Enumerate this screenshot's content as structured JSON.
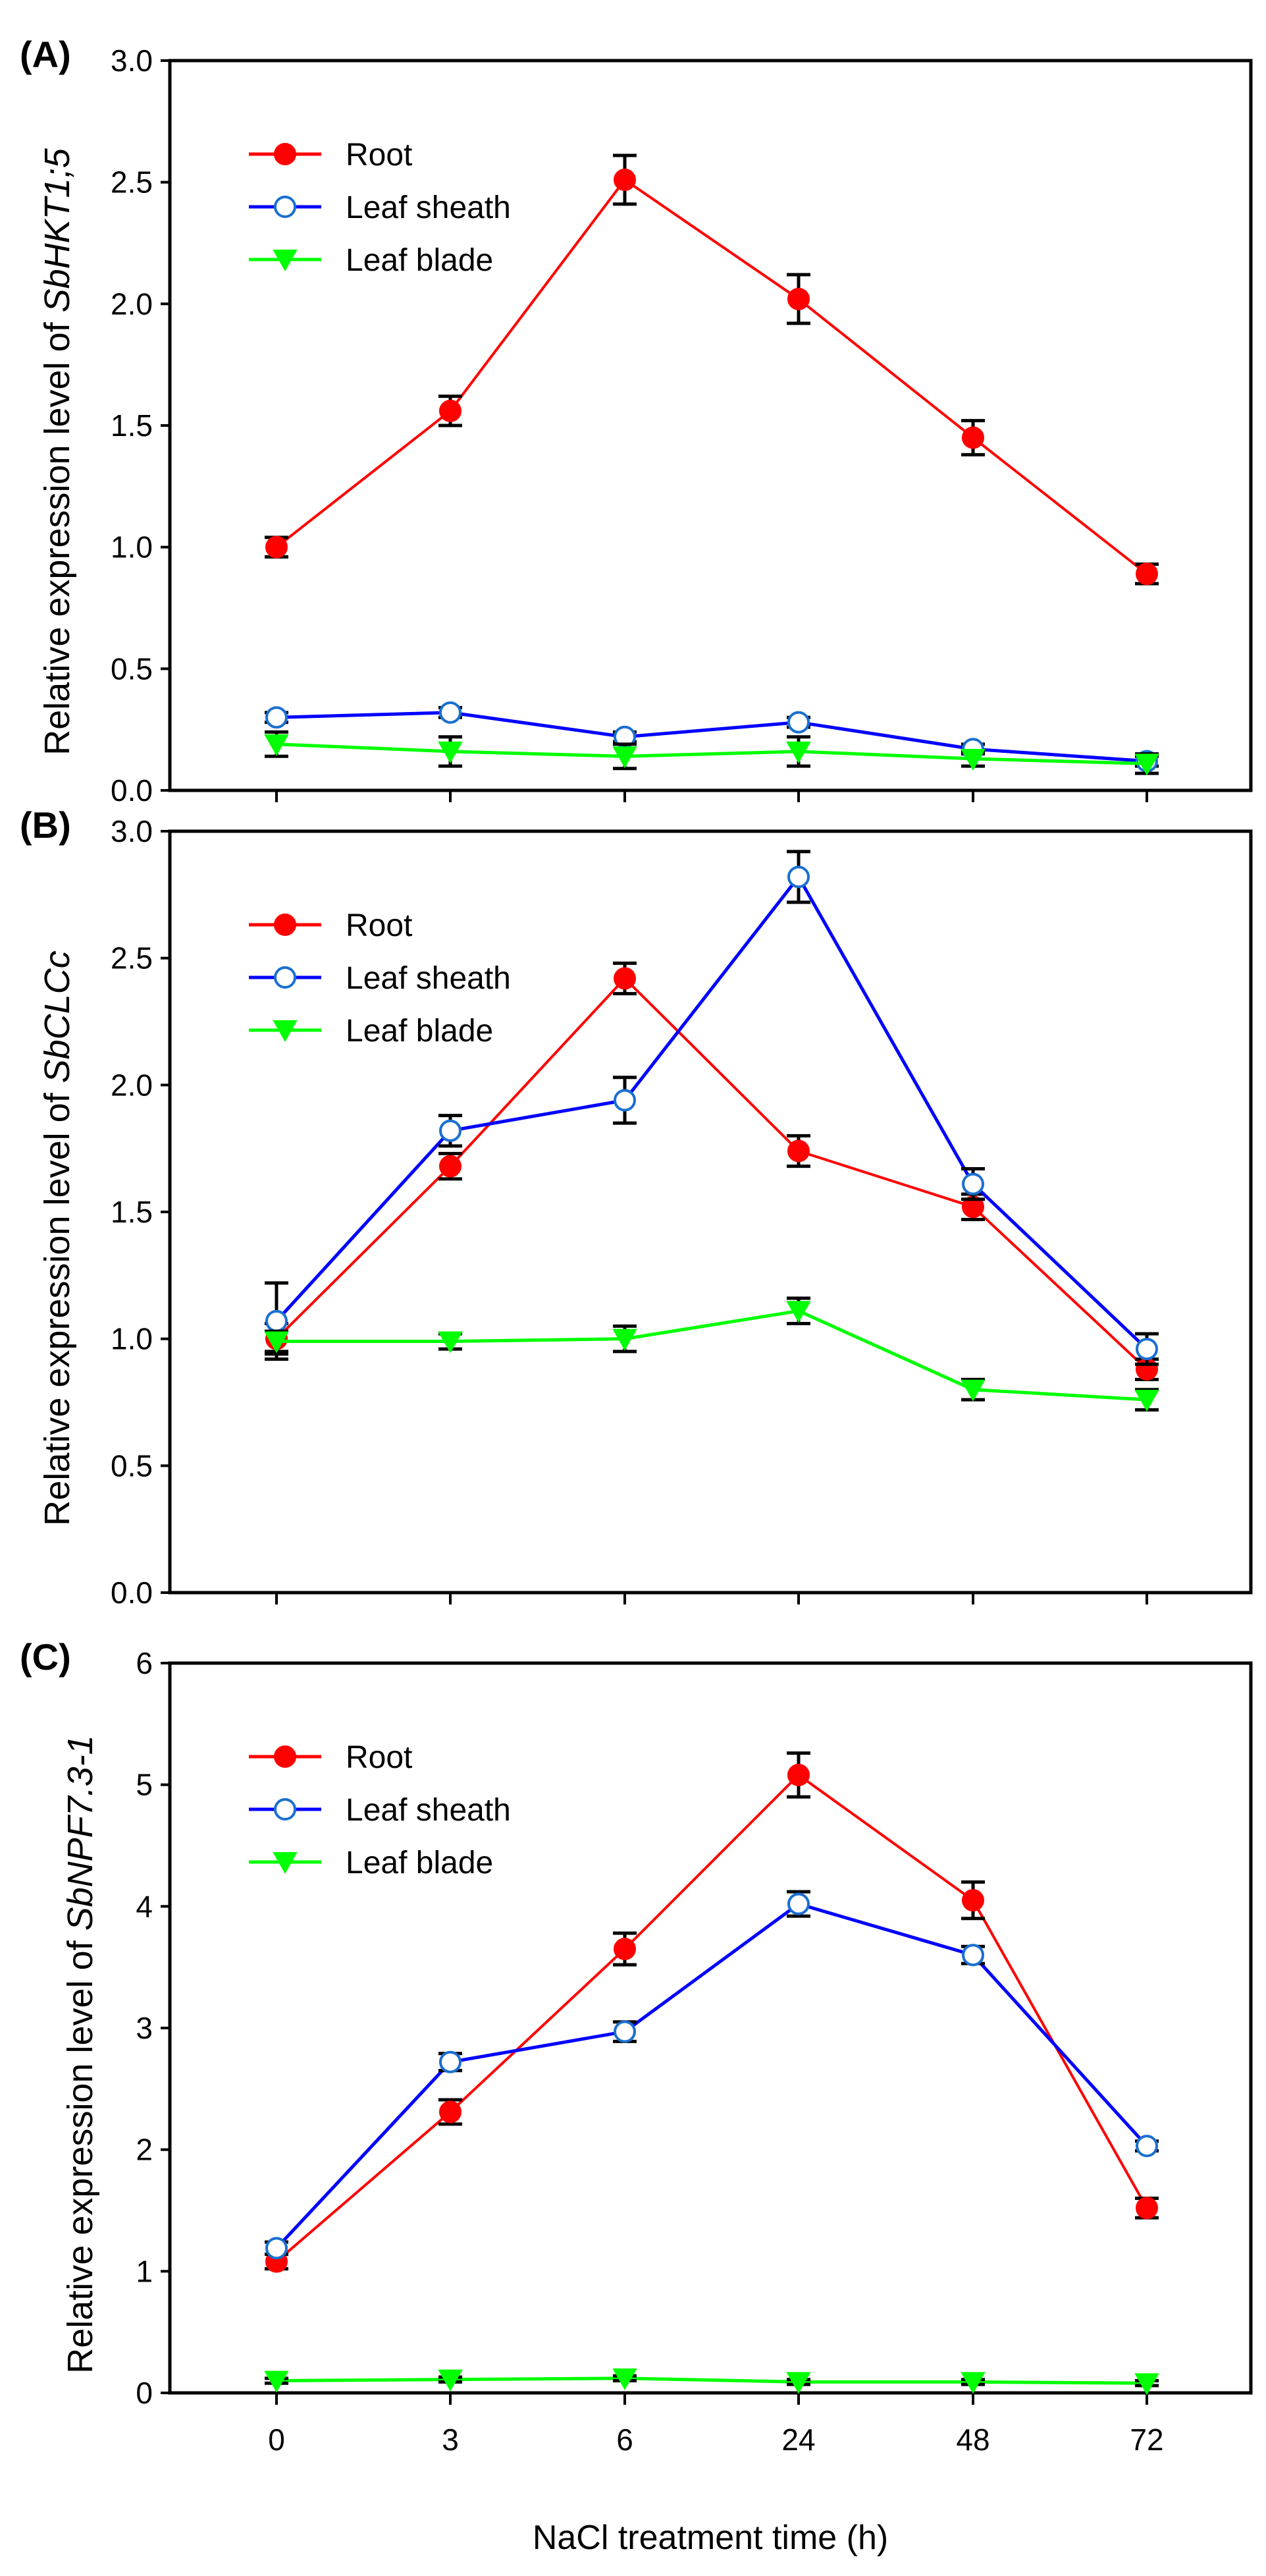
{
  "chart_data": [
    {
      "type": "line",
      "panel_label": "(A)",
      "ylabel_prefix": "Relative expression level of ",
      "ylabel_gene": "SbHKT1;5",
      "ylim": [
        0,
        3.0
      ],
      "yticks": [
        "0.0",
        "0.5",
        "1.0",
        "1.5",
        "2.0",
        "2.5",
        "3.0"
      ],
      "ytick_values": [
        0,
        0.5,
        1,
        1.5,
        2,
        2.5,
        3
      ],
      "categories": [
        "0",
        "3",
        "6",
        "24",
        "48",
        "72"
      ],
      "legend": "top-left",
      "series": [
        {
          "name": "Root",
          "color": "#ff0000",
          "marker": "filled-circle",
          "values": [
            1.0,
            1.56,
            2.51,
            2.02,
            1.45,
            0.89
          ],
          "errors": [
            0.04,
            0.06,
            0.1,
            0.1,
            0.07,
            0.04
          ]
        },
        {
          "name": "Leaf sheath",
          "color": "#0000ff",
          "marker": "open-circle",
          "values": [
            0.3,
            0.32,
            0.22,
            0.28,
            0.17,
            0.12
          ],
          "errors": [
            0.02,
            0.02,
            0.02,
            0.02,
            0.02,
            0.02
          ]
        },
        {
          "name": "Leaf blade",
          "color": "#00ff00",
          "marker": "down-triangle",
          "values": [
            0.19,
            0.16,
            0.14,
            0.16,
            0.13,
            0.11
          ],
          "errors": [
            0.05,
            0.06,
            0.05,
            0.06,
            0.03,
            0.04
          ]
        }
      ]
    },
    {
      "type": "line",
      "panel_label": "(B)",
      "ylabel_prefix": "Relative expression level of ",
      "ylabel_gene": "SbCLCc",
      "ylim": [
        0,
        3.0
      ],
      "yticks": [
        "0.0",
        "0.5",
        "1.0",
        "1.5",
        "2.0",
        "2.5",
        "3.0"
      ],
      "ytick_values": [
        0,
        0.5,
        1,
        1.5,
        2,
        2.5,
        3
      ],
      "categories": [
        "0",
        "3",
        "6",
        "24",
        "48",
        "72"
      ],
      "legend": "top-left",
      "series": [
        {
          "name": "Root",
          "color": "#ff0000",
          "marker": "filled-circle",
          "values": [
            1.0,
            1.68,
            2.42,
            1.74,
            1.52,
            0.88
          ],
          "errors": [
            0.06,
            0.05,
            0.06,
            0.06,
            0.05,
            0.04
          ]
        },
        {
          "name": "Leaf sheath",
          "color": "#0000ff",
          "marker": "open-circle",
          "values": [
            1.07,
            1.82,
            1.94,
            2.82,
            1.61,
            0.96
          ],
          "errors": [
            0.15,
            0.06,
            0.09,
            0.1,
            0.06,
            0.06
          ]
        },
        {
          "name": "Leaf blade",
          "color": "#00ff00",
          "marker": "down-triangle",
          "values": [
            0.99,
            0.99,
            1.0,
            1.11,
            0.8,
            0.76
          ],
          "errors": [
            0.04,
            0.03,
            0.05,
            0.05,
            0.04,
            0.04
          ]
        }
      ]
    },
    {
      "type": "line",
      "panel_label": "(C)",
      "ylabel_prefix": "Relative expression level of ",
      "ylabel_gene": "SbNPF7.3-1",
      "ylim": [
        0,
        6
      ],
      "yticks": [
        "0",
        "1",
        "2",
        "3",
        "4",
        "5",
        "6"
      ],
      "ytick_values": [
        0,
        1,
        2,
        3,
        4,
        5,
        6
      ],
      "categories": [
        "0",
        "3",
        "6",
        "24",
        "48",
        "72"
      ],
      "xlabel": "NaCl treatment time (h)",
      "legend": "top-left",
      "series": [
        {
          "name": "Root",
          "color": "#ff0000",
          "marker": "filled-circle",
          "values": [
            1.08,
            2.31,
            3.65,
            5.08,
            4.05,
            1.52
          ],
          "errors": [
            0.06,
            0.1,
            0.13,
            0.18,
            0.15,
            0.08
          ]
        },
        {
          "name": "Leaf sheath",
          "color": "#0000ff",
          "marker": "open-circle",
          "values": [
            1.19,
            2.72,
            2.97,
            4.02,
            3.6,
            2.03
          ],
          "errors": [
            0.05,
            0.07,
            0.08,
            0.1,
            0.07,
            0.04
          ]
        },
        {
          "name": "Leaf blade",
          "color": "#00ff00",
          "marker": "down-triangle",
          "values": [
            0.1,
            0.11,
            0.12,
            0.09,
            0.09,
            0.08
          ],
          "errors": [
            0.02,
            0.02,
            0.02,
            0.02,
            0.02,
            0.02
          ]
        }
      ]
    }
  ]
}
